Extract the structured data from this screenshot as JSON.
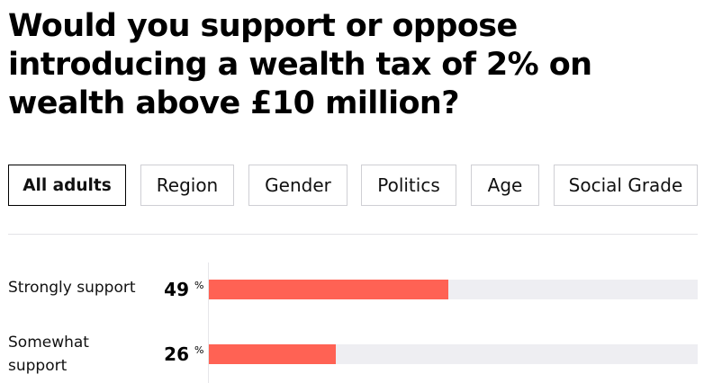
{
  "title": "Would you support or oppose introducing a wealth tax of 2% on wealth above £10 million?",
  "tabs": [
    {
      "label": "All adults",
      "active": true
    },
    {
      "label": "Region",
      "active": false
    },
    {
      "label": "Gender",
      "active": false
    },
    {
      "label": "Politics",
      "active": false
    },
    {
      "label": "Age",
      "active": false
    },
    {
      "label": "Social Grade",
      "active": false
    }
  ],
  "colors": {
    "bar": "#ff6254",
    "track": "#eeeef2"
  },
  "chart_data": {
    "type": "bar",
    "orientation": "horizontal",
    "categories": [
      "Strongly support",
      "Somewhat support"
    ],
    "values": [
      49,
      26
    ],
    "value_unit": "%",
    "xlim": [
      0,
      100
    ],
    "grid": false
  }
}
